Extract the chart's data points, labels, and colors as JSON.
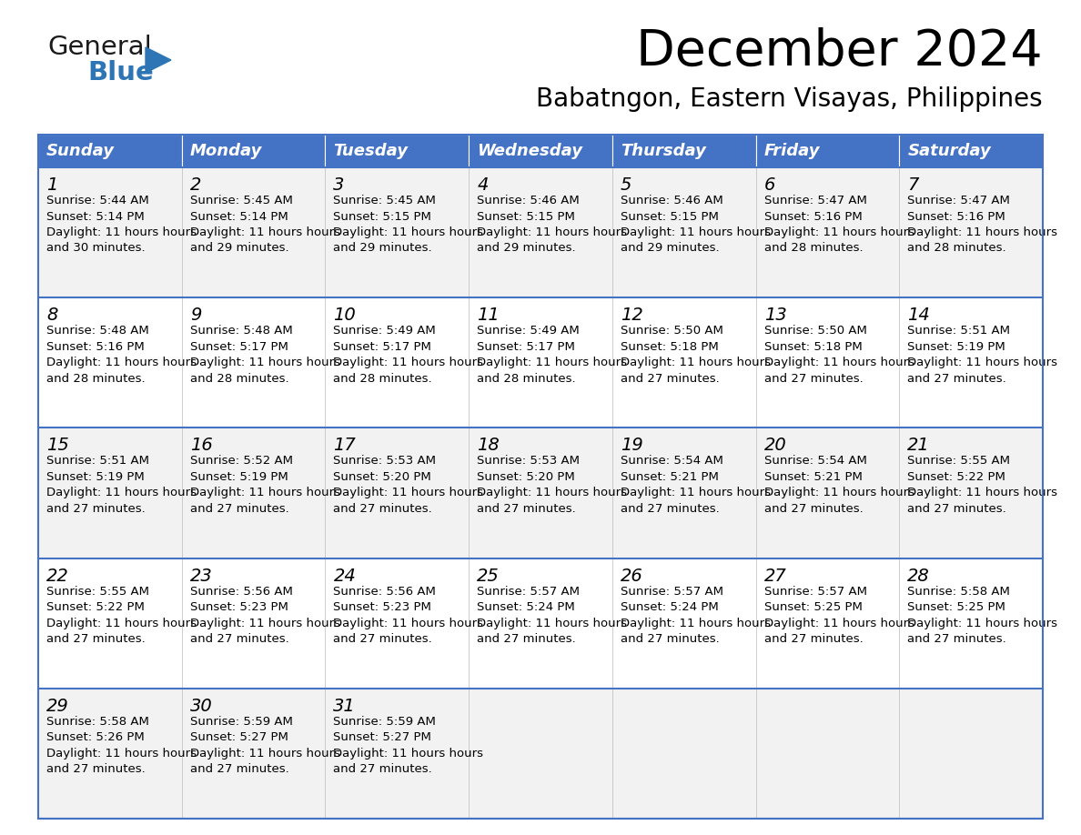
{
  "title": "December 2024",
  "subtitle": "Babatngon, Eastern Visayas, Philippines",
  "days_of_week": [
    "Sunday",
    "Monday",
    "Tuesday",
    "Wednesday",
    "Thursday",
    "Friday",
    "Saturday"
  ],
  "header_bg": "#4472C4",
  "header_text": "#FFFFFF",
  "row_bg_odd": "#F2F2F2",
  "row_bg_even": "#FFFFFF",
  "border_color": "#4472C4",
  "text_color": "#000000",
  "calendar_data": [
    [
      {
        "day": 1,
        "sunrise": "5:44 AM",
        "sunset": "5:14 PM",
        "daylight": "11 hours and 30 minutes"
      },
      {
        "day": 2,
        "sunrise": "5:45 AM",
        "sunset": "5:14 PM",
        "daylight": "11 hours and 29 minutes"
      },
      {
        "day": 3,
        "sunrise": "5:45 AM",
        "sunset": "5:15 PM",
        "daylight": "11 hours and 29 minutes"
      },
      {
        "day": 4,
        "sunrise": "5:46 AM",
        "sunset": "5:15 PM",
        "daylight": "11 hours and 29 minutes"
      },
      {
        "day": 5,
        "sunrise": "5:46 AM",
        "sunset": "5:15 PM",
        "daylight": "11 hours and 29 minutes"
      },
      {
        "day": 6,
        "sunrise": "5:47 AM",
        "sunset": "5:16 PM",
        "daylight": "11 hours and 28 minutes"
      },
      {
        "day": 7,
        "sunrise": "5:47 AM",
        "sunset": "5:16 PM",
        "daylight": "11 hours and 28 minutes"
      }
    ],
    [
      {
        "day": 8,
        "sunrise": "5:48 AM",
        "sunset": "5:16 PM",
        "daylight": "11 hours and 28 minutes"
      },
      {
        "day": 9,
        "sunrise": "5:48 AM",
        "sunset": "5:17 PM",
        "daylight": "11 hours and 28 minutes"
      },
      {
        "day": 10,
        "sunrise": "5:49 AM",
        "sunset": "5:17 PM",
        "daylight": "11 hours and 28 minutes"
      },
      {
        "day": 11,
        "sunrise": "5:49 AM",
        "sunset": "5:17 PM",
        "daylight": "11 hours and 28 minutes"
      },
      {
        "day": 12,
        "sunrise": "5:50 AM",
        "sunset": "5:18 PM",
        "daylight": "11 hours and 27 minutes"
      },
      {
        "day": 13,
        "sunrise": "5:50 AM",
        "sunset": "5:18 PM",
        "daylight": "11 hours and 27 minutes"
      },
      {
        "day": 14,
        "sunrise": "5:51 AM",
        "sunset": "5:19 PM",
        "daylight": "11 hours and 27 minutes"
      }
    ],
    [
      {
        "day": 15,
        "sunrise": "5:51 AM",
        "sunset": "5:19 PM",
        "daylight": "11 hours and 27 minutes"
      },
      {
        "day": 16,
        "sunrise": "5:52 AM",
        "sunset": "5:19 PM",
        "daylight": "11 hours and 27 minutes"
      },
      {
        "day": 17,
        "sunrise": "5:53 AM",
        "sunset": "5:20 PM",
        "daylight": "11 hours and 27 minutes"
      },
      {
        "day": 18,
        "sunrise": "5:53 AM",
        "sunset": "5:20 PM",
        "daylight": "11 hours and 27 minutes"
      },
      {
        "day": 19,
        "sunrise": "5:54 AM",
        "sunset": "5:21 PM",
        "daylight": "11 hours and 27 minutes"
      },
      {
        "day": 20,
        "sunrise": "5:54 AM",
        "sunset": "5:21 PM",
        "daylight": "11 hours and 27 minutes"
      },
      {
        "day": 21,
        "sunrise": "5:55 AM",
        "sunset": "5:22 PM",
        "daylight": "11 hours and 27 minutes"
      }
    ],
    [
      {
        "day": 22,
        "sunrise": "5:55 AM",
        "sunset": "5:22 PM",
        "daylight": "11 hours and 27 minutes"
      },
      {
        "day": 23,
        "sunrise": "5:56 AM",
        "sunset": "5:23 PM",
        "daylight": "11 hours and 27 minutes"
      },
      {
        "day": 24,
        "sunrise": "5:56 AM",
        "sunset": "5:23 PM",
        "daylight": "11 hours and 27 minutes"
      },
      {
        "day": 25,
        "sunrise": "5:57 AM",
        "sunset": "5:24 PM",
        "daylight": "11 hours and 27 minutes"
      },
      {
        "day": 26,
        "sunrise": "5:57 AM",
        "sunset": "5:24 PM",
        "daylight": "11 hours and 27 minutes"
      },
      {
        "day": 27,
        "sunrise": "5:57 AM",
        "sunset": "5:25 PM",
        "daylight": "11 hours and 27 minutes"
      },
      {
        "day": 28,
        "sunrise": "5:58 AM",
        "sunset": "5:25 PM",
        "daylight": "11 hours and 27 minutes"
      }
    ],
    [
      {
        "day": 29,
        "sunrise": "5:58 AM",
        "sunset": "5:26 PM",
        "daylight": "11 hours and 27 minutes"
      },
      {
        "day": 30,
        "sunrise": "5:59 AM",
        "sunset": "5:27 PM",
        "daylight": "11 hours and 27 minutes"
      },
      {
        "day": 31,
        "sunrise": "5:59 AM",
        "sunset": "5:27 PM",
        "daylight": "11 hours and 27 minutes"
      },
      null,
      null,
      null,
      null
    ]
  ],
  "logo_color_general": "#1a1a1a",
  "logo_color_blue": "#2E75B6",
  "logo_triangle_color": "#2E75B6",
  "fig_width": 11.88,
  "fig_height": 9.18,
  "dpi": 100
}
